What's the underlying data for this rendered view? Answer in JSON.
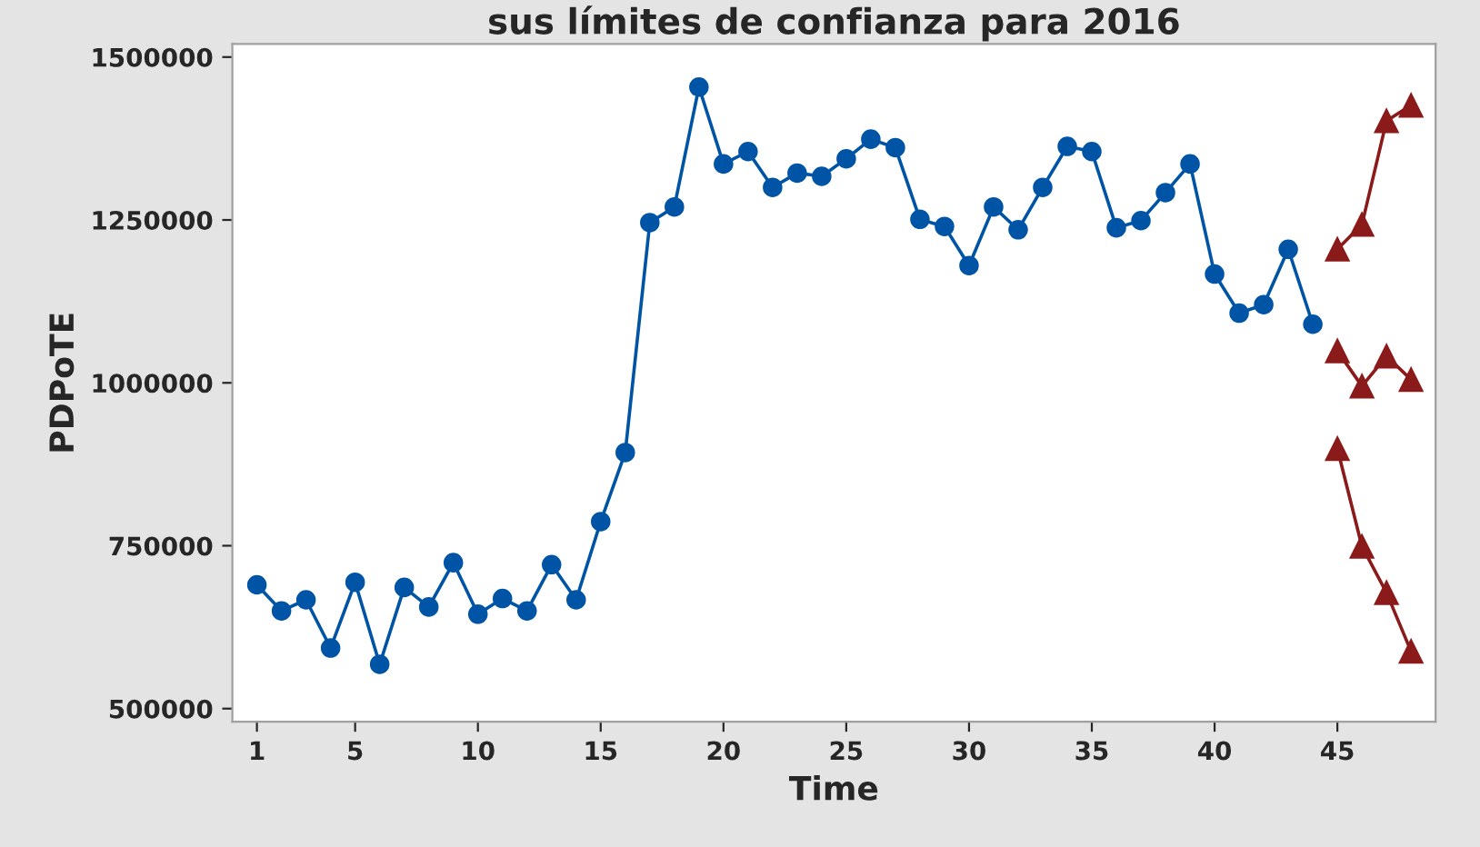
{
  "chart_data": {
    "type": "line",
    "title": "sus límites de confianza para 2016",
    "xlabel": "Time",
    "ylabel": "PDPoTE",
    "series": [
      {
        "color": "#0054a6",
        "marker": "circle",
        "x": [
          1,
          2,
          3,
          4,
          5,
          6,
          7,
          8,
          9,
          10,
          11,
          12,
          13,
          14,
          15,
          16,
          17,
          18,
          19,
          20,
          21,
          22,
          23,
          24,
          25,
          26,
          27,
          28,
          29,
          30,
          31,
          32,
          33,
          34,
          35,
          36,
          37,
          38,
          39,
          40,
          41,
          42,
          43,
          44
        ],
        "values": [
          690000,
          650000,
          667000,
          593000,
          694000,
          568000,
          686000,
          656000,
          724000,
          645000,
          669000,
          650000,
          721000,
          667000,
          787000,
          893000,
          1246000,
          1270000,
          1454000,
          1336000,
          1355000,
          1300000,
          1322000,
          1317000,
          1344000,
          1374000,
          1361000,
          1251000,
          1240000,
          1180000,
          1270000,
          1235000,
          1300000,
          1363000,
          1355000,
          1238000,
          1249000,
          1292000,
          1336000,
          1167000,
          1107000,
          1120000,
          1205000,
          1090000
        ]
      },
      {
        "color": "#8b1a1a",
        "marker": "triangle",
        "x": [
          45,
          46,
          47,
          48
        ],
        "values": [
          1205000,
          1243000,
          1402000,
          1426000
        ]
      },
      {
        "color": "#8b1a1a",
        "marker": "triangle",
        "x": [
          45,
          46,
          47,
          48
        ],
        "values": [
          1049000,
          995000,
          1041000,
          1005000
        ]
      },
      {
        "color": "#8b1a1a",
        "marker": "triangle",
        "x": [
          45,
          46,
          47,
          48
        ],
        "values": [
          899000,
          749000,
          678000,
          588000
        ]
      }
    ],
    "xlim": [
      0,
      49
    ],
    "xticks": [
      1,
      5,
      10,
      15,
      20,
      25,
      30,
      35,
      40,
      45
    ],
    "ylim": [
      480000,
      1520000
    ],
    "yticks": [
      500000,
      750000,
      1000000,
      1250000,
      1500000
    ],
    "grid": false,
    "legend": false
  }
}
